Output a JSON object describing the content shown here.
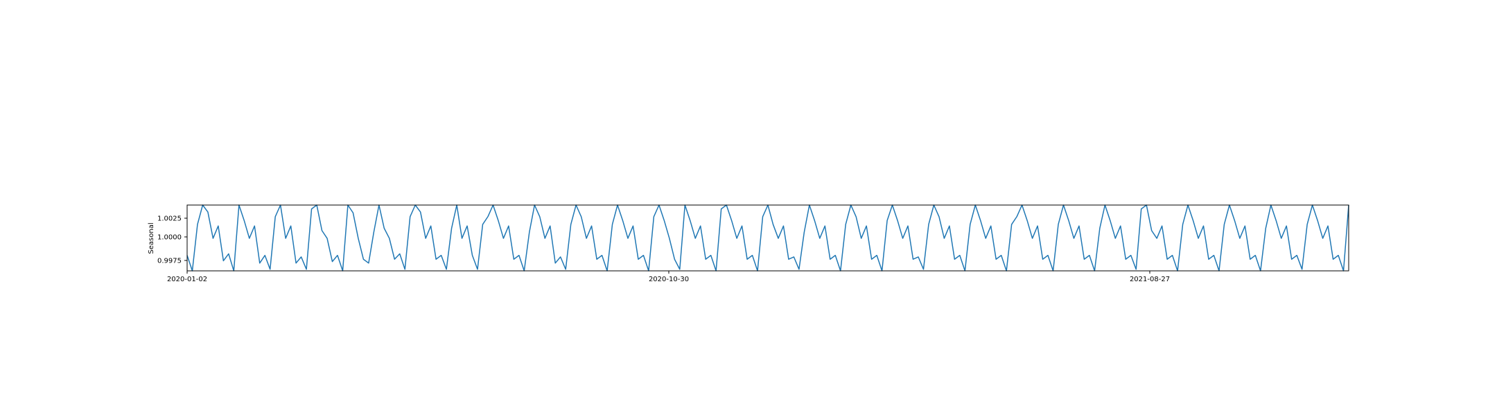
{
  "chart_data": {
    "type": "line",
    "title": "",
    "xlabel": "",
    "ylabel": "Seasonal",
    "x_ticks": [
      "2020-01-02",
      "2020-10-30",
      "2021-08-27"
    ],
    "y_ticks": [
      "0.9975",
      "1.0000",
      "1.0025"
    ],
    "ylim": [
      0.996,
      1.0045
    ],
    "grid": false,
    "legend": "none",
    "series": [
      {
        "color": "#1f77b4",
        "values": [
          0.998,
          0.996,
          1.002,
          1.0045,
          1.0036,
          1.0002,
          1.0018,
          0.9973,
          0.9982,
          0.996,
          1.0045,
          1.0025,
          1.0002,
          1.0018,
          0.997,
          0.998,
          0.9962,
          1.003,
          1.0045,
          1.0002,
          1.0018,
          0.997,
          0.9978,
          0.9962,
          1.004,
          1.0045,
          1.0012,
          1.0002,
          0.9972,
          0.998,
          0.996,
          1.0045,
          1.0035,
          1.0002,
          0.9975,
          0.997,
          1.001,
          1.0045,
          1.0015,
          1.0002,
          0.9975,
          0.9982,
          0.9962,
          1.003,
          1.0045,
          1.0036,
          1.0002,
          1.0018,
          0.9975,
          0.998,
          0.9962,
          1.0015,
          1.0045,
          1.0002,
          1.0018,
          0.998,
          0.9962,
          1.002,
          1.003,
          1.0045,
          1.0025,
          1.0002,
          1.0018,
          0.9975,
          0.998,
          0.996,
          1.001,
          1.0045,
          1.003,
          1.0002,
          1.0018,
          0.997,
          0.9978,
          0.9962,
          1.002,
          1.0045,
          1.003,
          1.0002,
          1.0018,
          0.9975,
          0.998,
          0.996,
          1.002,
          1.0045,
          1.0025,
          1.0002,
          1.0018,
          0.9975,
          0.998,
          0.996,
          1.003,
          1.0045,
          1.0025,
          1.0002,
          0.9975,
          0.9962,
          1.0045,
          1.0025,
          1.0002,
          1.0018,
          0.9975,
          0.998,
          0.996,
          1.004,
          1.0045,
          1.0025,
          1.0002,
          1.0018,
          0.9975,
          0.998,
          0.996,
          1.003,
          1.0045,
          1.002,
          1.0002,
          1.0018,
          0.9975,
          0.9978,
          0.9962,
          1.001,
          1.0045,
          1.0025,
          1.0002,
          1.0018,
          0.9975,
          0.998,
          0.996,
          1.002,
          1.0045,
          1.003,
          1.0002,
          1.0018,
          0.9975,
          0.998,
          0.996,
          1.0025,
          1.0045,
          1.0025,
          1.0002,
          1.0018,
          0.9975,
          0.9978,
          0.9962,
          1.002,
          1.0045,
          1.003,
          1.0002,
          1.0018,
          0.9975,
          0.998,
          0.996,
          1.002,
          1.0045,
          1.0025,
          1.0002,
          1.0018,
          0.9975,
          0.998,
          0.996,
          1.002,
          1.003,
          1.0045,
          1.0025,
          1.0002,
          1.0018,
          0.9975,
          0.998,
          0.996,
          1.002,
          1.0045,
          1.0025,
          1.0002,
          1.0018,
          0.9975,
          0.998,
          0.996,
          1.0015,
          1.0045,
          1.0025,
          1.0002,
          1.0018,
          0.9975,
          0.998,
          0.9962,
          1.004,
          1.0045,
          1.0012,
          1.0002,
          1.0018,
          0.9975,
          0.998,
          0.996,
          1.002,
          1.0045,
          1.0025,
          1.0002,
          1.0018,
          0.9975,
          0.998,
          0.996,
          1.002,
          1.0045,
          1.0025,
          1.0002,
          1.0018,
          0.9975,
          0.998,
          0.996,
          1.0015,
          1.0045,
          1.0025,
          1.0002,
          1.0018,
          0.9975,
          0.998,
          0.9962,
          1.002,
          1.0045,
          1.0025,
          1.0002,
          1.0018,
          0.9975,
          0.998,
          0.996,
          1.0045
        ]
      }
    ]
  }
}
